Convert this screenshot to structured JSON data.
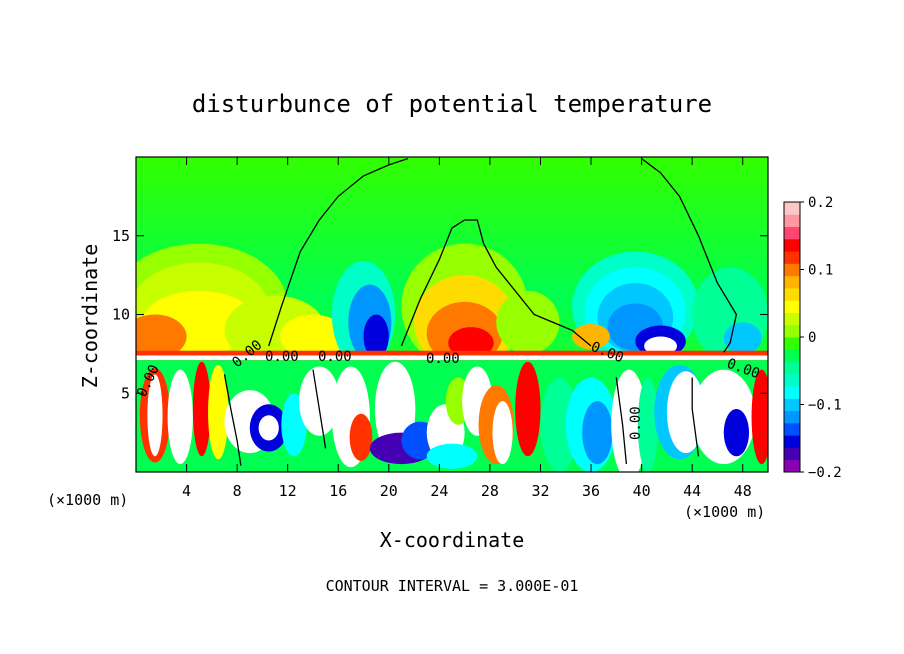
{
  "chart_data": {
    "type": "heatmap",
    "title": "disturbunce of potential temperature",
    "xlabel": "X-coordinate",
    "ylabel": "Z-coordinate",
    "x_unit": "(×1000 m)",
    "x_unit_right": "(×1000 m)",
    "footer": "CONTOUR INTERVAL = 3.000E-01",
    "xlim": [
      0,
      50
    ],
    "ylim": [
      0,
      20
    ],
    "x_ticks": [
      4,
      8,
      12,
      16,
      20,
      24,
      28,
      32,
      36,
      40,
      44,
      48
    ],
    "y_ticks": [
      5,
      10,
      15
    ],
    "colorbar": {
      "range": [
        -0.2,
        0.2
      ],
      "tick_labels": [
        "0.2",
        "0.1",
        "0",
        "−0.1",
        "−0.2"
      ],
      "tick_values": [
        0.2,
        0.1,
        0,
        -0.1,
        -0.2
      ],
      "colors": [
        "#8c00b4",
        "#4600b4",
        "#0000dc",
        "#0050ff",
        "#0096ff",
        "#00c8ff",
        "#00ffff",
        "#00ffc8",
        "#00ff96",
        "#00ff50",
        "#32ff00",
        "#96ff00",
        "#c8ff00",
        "#ffff00",
        "#ffdc00",
        "#ffb400",
        "#ff7800",
        "#ff3200",
        "#ff0000",
        "#ff4670",
        "#ff96a0",
        "#ffc8c8"
      ]
    },
    "contour_labels": [
      "0.00",
      "0.00",
      "0.00",
      "0.00",
      "0.00",
      "0.00",
      "0.00",
      "0.00"
    ]
  }
}
